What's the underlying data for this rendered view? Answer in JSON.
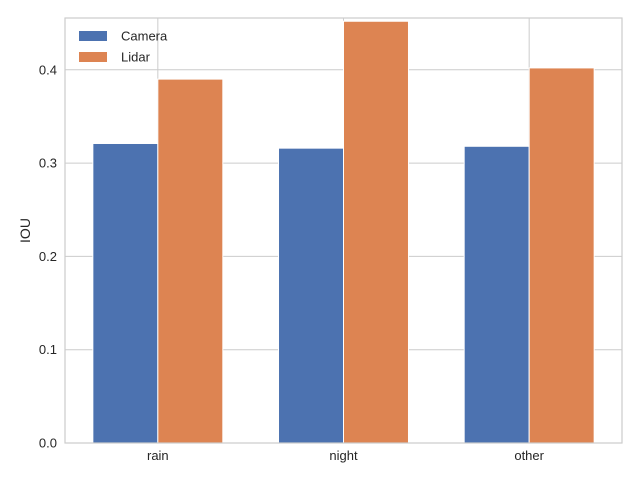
{
  "chart_data": {
    "type": "bar",
    "categories": [
      "rain",
      "night",
      "other"
    ],
    "series": [
      {
        "name": "Camera",
        "values": [
          0.321,
          0.316,
          0.318
        ],
        "color": "#4c72b0"
      },
      {
        "name": "Lidar",
        "values": [
          0.39,
          0.452,
          0.402
        ],
        "color": "#dd8452"
      }
    ],
    "title": "",
    "xlabel": "",
    "ylabel": "IOU",
    "ylim": [
      0,
      0.4555
    ],
    "yticks": [
      0.0,
      0.1,
      0.2,
      0.3,
      0.4
    ],
    "ytick_labels": [
      "0.0",
      "0.1",
      "0.2",
      "0.3",
      "0.4"
    ],
    "grid": true,
    "legend_position": "top-left"
  }
}
